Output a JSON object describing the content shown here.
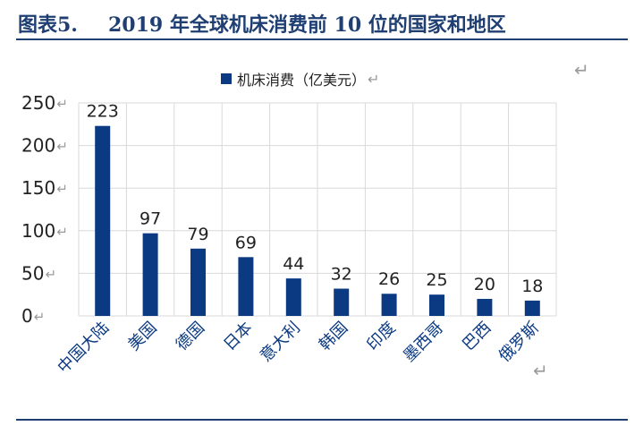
{
  "header": {
    "figure_number": "图表5.",
    "title": "2019 年全球机床消费前 10 位的国家和地区"
  },
  "legend": {
    "label": "机床消费（亿美元）",
    "mark": "↵"
  },
  "marks": {
    "corner_top": "↵",
    "corner_bottom": "↵"
  },
  "colors": {
    "title": "#1f3f73",
    "bar": "#0b3a82",
    "grid": "#d9d9d9"
  },
  "chart_data": {
    "type": "bar",
    "categories": [
      "中国大陆",
      "美国",
      "德国",
      "日本",
      "意大利",
      "韩国",
      "印度",
      "墨西哥",
      "巴西",
      "俄罗斯"
    ],
    "series": [
      {
        "name": "机床消费（亿美元）",
        "values": [
          223,
          97,
          79,
          69,
          44,
          32,
          26,
          25,
          20,
          18
        ]
      }
    ],
    "ylim": [
      0,
      250
    ],
    "yticks": [
      0,
      50,
      100,
      150,
      200,
      250
    ],
    "grid": true,
    "legend_position": "top",
    "data_labels": true
  }
}
